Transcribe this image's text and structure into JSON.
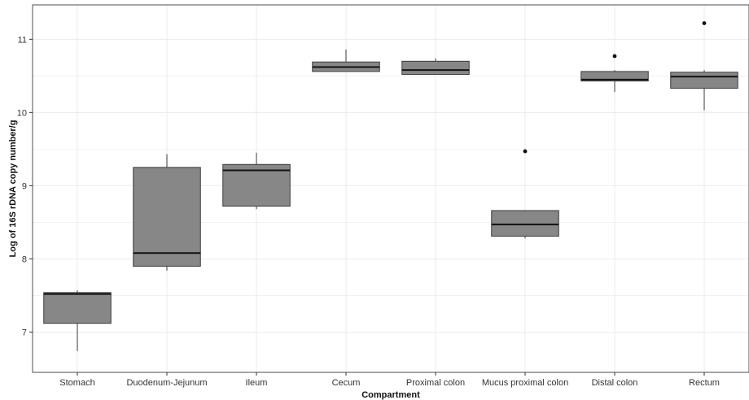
{
  "chart_data": {
    "type": "box",
    "xlabel": "Compartment",
    "ylabel": "Log of 16S rDNA copy number/g",
    "ylim": [
      6.45,
      11.47
    ],
    "yticks": [
      7,
      8,
      9,
      10,
      11
    ],
    "grid": true,
    "colors": {
      "box_fill": "#878787",
      "box_stroke": "#3a3a3a",
      "median": "#111111",
      "outlier": "#111111",
      "grid": "#ebebeb"
    },
    "categories": [
      "Stomach",
      "Duodenum-Jejunum",
      "Ileum",
      "Cecum",
      "Proximal colon",
      "Mucus proximal colon",
      "Distal colon",
      "Rectum"
    ],
    "boxes": [
      {
        "category": "Stomach",
        "min": 6.74,
        "q1": 7.12,
        "median": 7.52,
        "q3": 7.54,
        "max": 7.57,
        "outliers": []
      },
      {
        "category": "Duodenum-Jejunum",
        "min": 7.84,
        "q1": 7.9,
        "median": 8.08,
        "q3": 9.25,
        "max": 9.43,
        "outliers": []
      },
      {
        "category": "Ileum",
        "min": 8.68,
        "q1": 8.72,
        "median": 9.21,
        "q3": 9.29,
        "max": 9.45,
        "outliers": []
      },
      {
        "category": "Cecum",
        "min": 10.56,
        "q1": 10.56,
        "median": 10.62,
        "q3": 10.69,
        "max": 10.86,
        "outliers": []
      },
      {
        "category": "Proximal colon",
        "min": 10.52,
        "q1": 10.52,
        "median": 10.58,
        "q3": 10.7,
        "max": 10.74,
        "outliers": []
      },
      {
        "category": "Mucus proximal colon",
        "min": 8.28,
        "q1": 8.31,
        "median": 8.47,
        "q3": 8.66,
        "max": 8.66,
        "outliers": [
          9.47
        ]
      },
      {
        "category": "Distal colon",
        "min": 10.28,
        "q1": 10.43,
        "median": 10.45,
        "q3": 10.56,
        "max": 10.58,
        "outliers": [
          10.77
        ]
      },
      {
        "category": "Rectum",
        "min": 10.03,
        "q1": 10.33,
        "median": 10.49,
        "q3": 10.55,
        "max": 10.58,
        "outliers": [
          11.22
        ]
      }
    ]
  }
}
